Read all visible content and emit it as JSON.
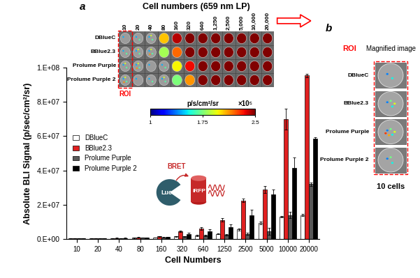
{
  "chart_data": {
    "type": "bar",
    "x_label": "Cell Numbers",
    "y_label": "Absolute BLI Signal (p/sec/cm²/sr)",
    "categories": [
      "10",
      "20",
      "40",
      "80",
      "160",
      "320",
      "640",
      "1250",
      "2500",
      "5000",
      "10000",
      "20000"
    ],
    "series": [
      {
        "name": "DBlueC",
        "color": "#ffffff",
        "values": [
          300000,
          400000,
          500000,
          700000,
          800000,
          1500000,
          2000000,
          3000000,
          5500000,
          9500000,
          13000000,
          14000000
        ],
        "errors": [
          50000,
          50000,
          50000,
          100000,
          100000,
          200000,
          300000,
          300000,
          800000,
          800000,
          500000,
          500000
        ]
      },
      {
        "name": "BBlue2.3",
        "color": "#e02020",
        "values": [
          400000,
          500000,
          600000,
          1000000,
          1500000,
          4500000,
          6000000,
          11000000,
          22500000,
          29000000,
          70000000,
          95500000
        ],
        "errors": [
          50000,
          100000,
          100000,
          100000,
          200000,
          500000,
          800000,
          1000000,
          1000000,
          2000000,
          6000000,
          1000000
        ]
      },
      {
        "name": "Prolume Purple",
        "color": "#595959",
        "values": [
          300000,
          400000,
          500000,
          800000,
          1000000,
          1500000,
          2000000,
          2500000,
          3000000,
          4500000,
          14000000,
          32000000
        ],
        "errors": [
          50000,
          50000,
          50000,
          100000,
          100000,
          200000,
          300000,
          300000,
          500000,
          2000000,
          2000000,
          1000000
        ]
      },
      {
        "name": "Prolume Purple 2",
        "color": "#000000",
        "values": [
          300000,
          400000,
          600000,
          900000,
          1200000,
          3000000,
          4500000,
          7000000,
          14000000,
          26000000,
          41500000,
          58500000
        ],
        "errors": [
          50000,
          50000,
          100000,
          100000,
          200000,
          800000,
          1000000,
          1500000,
          3000000,
          3000000,
          6000000,
          1000000
        ]
      }
    ],
    "ylim": [
      0,
      100000000
    ],
    "yticks": [
      {
        "value": 0,
        "label": "0.E+00"
      },
      {
        "value": 20000000,
        "label": "2.E+07"
      },
      {
        "value": 40000000,
        "label": "4.E+07"
      },
      {
        "value": 60000000,
        "label": "6.E+07"
      },
      {
        "value": 80000000,
        "label": "8.E+07"
      },
      {
        "value": 100000000,
        "label": "1.E+08"
      }
    ],
    "grid": false,
    "legend": "center left"
  },
  "panel_labels": [
    "a",
    "b"
  ],
  "image_strip": {
    "title": "Cell numbers (659 nm LP)",
    "columns": [
      "10",
      "20",
      "40",
      "80",
      "160",
      "320",
      "640",
      "1,250",
      "2,500",
      "5,000",
      "10,000",
      "20,000"
    ],
    "rows": [
      "DBlueC",
      "BBlue2.3",
      "Prolume Purple",
      "Prolume Purple 2"
    ],
    "roi_label": "ROI"
  },
  "colorbar": {
    "label": "p/s/cm²/sr",
    "multiplier": "×10⁵",
    "range": [
      1,
      2.5
    ],
    "ticks": [
      1,
      1.75,
      2.5
    ]
  },
  "diagram": {
    "transfer": "BRET",
    "donor": "Luc",
    "acceptor": "iRFP"
  },
  "magnified": {
    "roi_label": "ROI",
    "title": "Magnified image",
    "rows": [
      "DBlueC",
      "BBlue2.3",
      "Prolume Purple",
      "Prolume Purple 2"
    ],
    "caption": "10 cells"
  }
}
